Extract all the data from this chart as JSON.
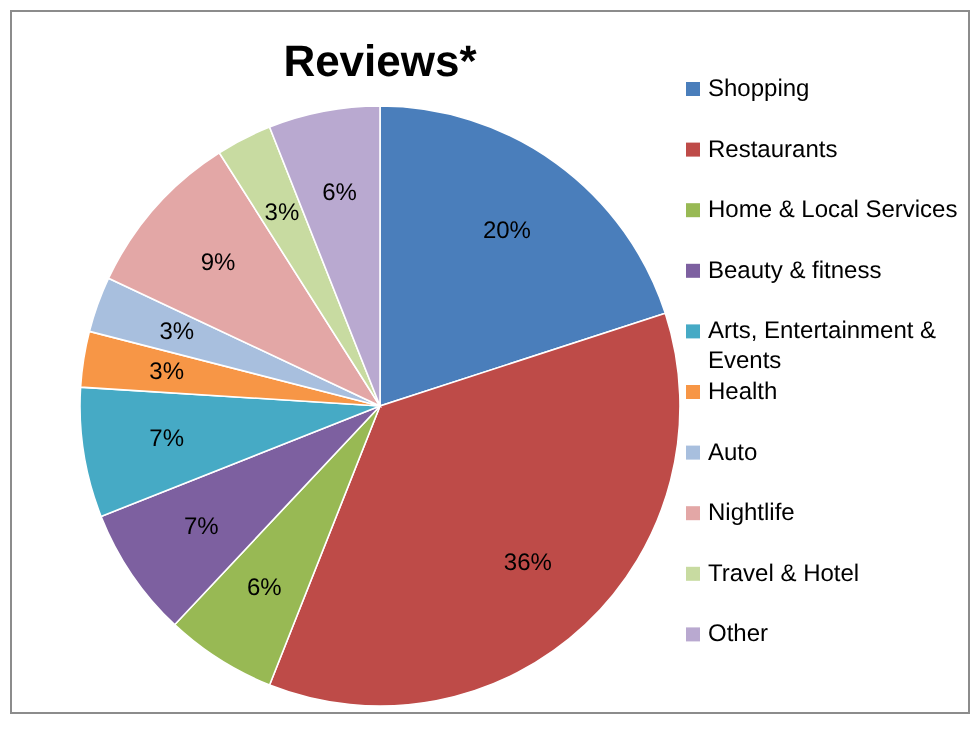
{
  "chart_data": {
    "type": "pie",
    "title": "Reviews*",
    "categories": [
      "Shopping",
      "Restaurants",
      "Home & Local Services",
      "Beauty & fitness",
      "Arts, Entertainment & Events",
      "Health",
      "Auto",
      "Nightlife",
      "Travel & Hotel",
      "Other"
    ],
    "values": [
      20,
      36,
      6,
      7,
      7,
      3,
      3,
      9,
      3,
      6
    ],
    "colors": [
      "#4a7ebb",
      "#be4b48",
      "#98b954",
      "#7d60a0",
      "#46aac5",
      "#f79646",
      "#a8bfde",
      "#e3a7a6",
      "#c8dba1",
      "#b9a9d0"
    ],
    "value_labels": [
      "20%",
      "36%",
      "6%",
      "7%",
      "7%",
      "3%",
      "3%",
      "9%",
      "3%",
      "6%"
    ],
    "legend": "right"
  }
}
